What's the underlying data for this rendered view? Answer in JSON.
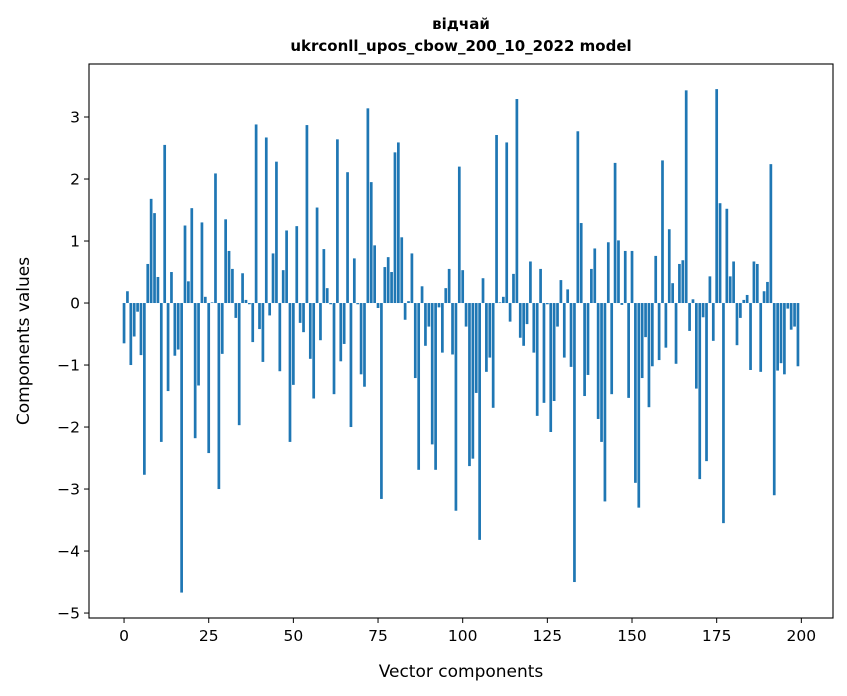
{
  "chart_data": {
    "type": "bar",
    "title": "відчай",
    "subtitle": "ukrconll_upos_cbow_200_10_2022 model",
    "xlabel": "Vector components",
    "ylabel": "Components values",
    "xlim": [
      -10.35,
      209.35
    ],
    "ylim": [
      -5.08,
      3.855
    ],
    "xticks": [
      0,
      25,
      50,
      75,
      100,
      125,
      150,
      175,
      200
    ],
    "yticks": [
      -5,
      -4,
      -3,
      -2,
      -1,
      0,
      1,
      2,
      3
    ],
    "grid": false,
    "bar_color": "#1f77b4",
    "values": [
      -0.65,
      0.19,
      -1.0,
      -0.54,
      -0.14,
      -0.84,
      -2.77,
      0.63,
      1.68,
      1.45,
      0.42,
      -2.24,
      2.55,
      -1.42,
      0.5,
      -0.85,
      -0.75,
      -4.67,
      1.25,
      0.35,
      1.53,
      -2.18,
      -1.33,
      1.3,
      0.1,
      -2.42,
      0.01,
      2.09,
      -3.0,
      -0.82,
      1.35,
      0.84,
      0.55,
      -0.24,
      -1.97,
      0.48,
      0.05,
      -0.02,
      -0.63,
      2.88,
      -0.42,
      -0.95,
      2.67,
      -0.2,
      0.8,
      2.28,
      -1.1,
      0.53,
      1.17,
      -2.24,
      -1.32,
      1.24,
      -0.32,
      -0.47,
      2.87,
      -0.9,
      -1.54,
      1.54,
      -0.6,
      0.87,
      0.24,
      -0.02,
      -1.47,
      2.64,
      -0.94,
      -0.66,
      2.11,
      -2.0,
      0.72,
      -0.02,
      -1.15,
      -1.35,
      3.14,
      1.95,
      0.93,
      -0.08,
      -3.16,
      0.58,
      0.74,
      0.5,
      2.43,
      2.59,
      1.06,
      -0.27,
      0.03,
      0.8,
      -1.21,
      -2.69,
      0.27,
      -0.69,
      -0.38,
      -2.28,
      -2.69,
      -0.07,
      -0.8,
      0.24,
      0.55,
      -0.83,
      -3.35,
      2.2,
      0.53,
      -0.38,
      -2.63,
      -2.51,
      -1.45,
      -3.82,
      0.4,
      -1.11,
      -0.88,
      -1.69,
      2.71,
      0.01,
      0.1,
      2.59,
      -0.3,
      0.47,
      3.29,
      -0.56,
      -0.69,
      -0.34,
      0.67,
      -0.8,
      -1.82,
      0.55,
      -1.61,
      -0.02,
      -2.08,
      -1.58,
      -0.38,
      0.37,
      -0.88,
      0.22,
      -1.03,
      -4.5,
      2.77,
      1.29,
      -1.5,
      -1.16,
      0.55,
      0.88,
      -1.87,
      -2.24,
      -3.2,
      0.98,
      -1.47,
      2.26,
      1.01,
      -0.03,
      0.84,
      -1.53,
      0.84,
      -2.9,
      -3.3,
      -1.21,
      -0.55,
      -1.68,
      -1.02,
      0.76,
      -0.92,
      2.3,
      -0.72,
      1.19,
      0.32,
      -0.98,
      0.63,
      0.69,
      3.43,
      -0.45,
      0.06,
      -1.38,
      -2.84,
      -0.23,
      -2.55,
      0.43,
      -0.61,
      3.45,
      1.61,
      -3.55,
      1.52,
      0.43,
      0.67,
      -0.68,
      -0.24,
      0.05,
      0.13,
      -1.08,
      0.67,
      0.63,
      -1.11,
      0.19,
      0.34,
      2.24,
      -3.1,
      -1.09,
      -0.97,
      -1.15,
      -0.09,
      -0.43,
      -0.38,
      -1.02
    ]
  }
}
